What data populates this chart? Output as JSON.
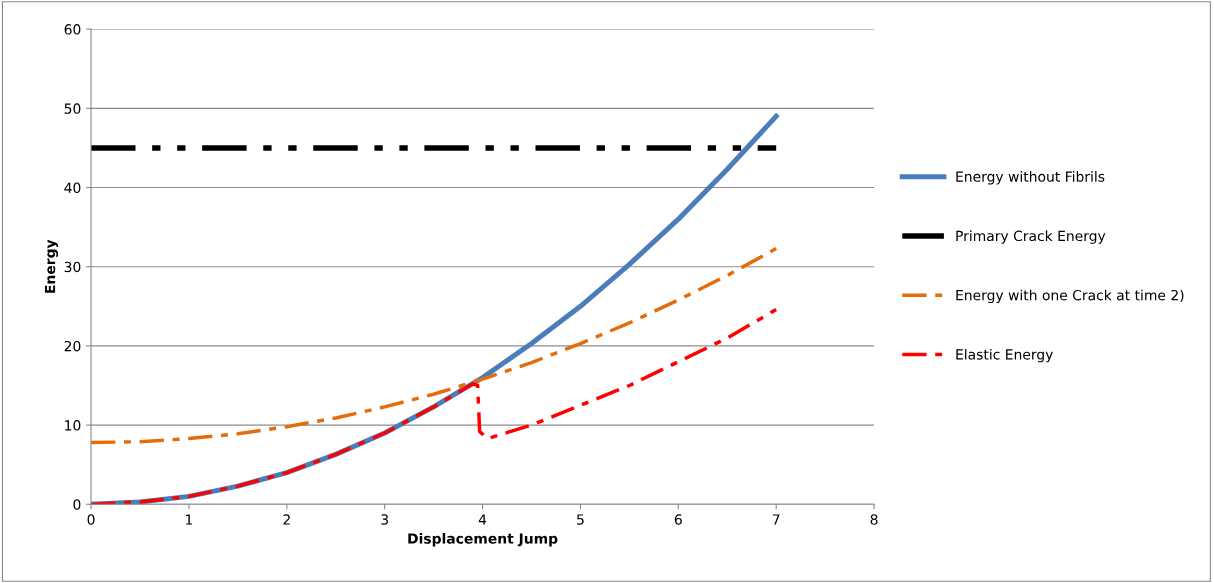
{
  "chart_data": {
    "type": "line",
    "xlabel": "Displacement Jump",
    "ylabel": "Energy",
    "xlim": [
      0,
      8
    ],
    "xticks": [
      0,
      1,
      2,
      3,
      4,
      5,
      6,
      7,
      8
    ],
    "ylim": [
      0,
      60
    ],
    "yticks": [
      0,
      10,
      20,
      30,
      40,
      50,
      60
    ],
    "grid": "y",
    "legend": "right",
    "marker": "none",
    "series": [
      {
        "name": "Energy without Fibrils",
        "color": "#4a7ebb",
        "line_style": "solid",
        "x": [
          0,
          0.5,
          1,
          1.5,
          2,
          2.5,
          3,
          3.5,
          4,
          4.5,
          5,
          5.5,
          6,
          6.5,
          7
        ],
        "values": [
          0,
          0.3,
          1,
          2.3,
          4,
          6.3,
          9,
          12.3,
          16,
          20.3,
          25,
          30.3,
          36,
          42.3,
          49
        ]
      },
      {
        "name": "Primary Crack Energy",
        "color": "#000000",
        "line_style": "dashdotdot",
        "x": [
          0,
          7
        ],
        "values": [
          45,
          45
        ]
      },
      {
        "name": "Energy with one Crack at time 2)",
        "color": "#e46c0a",
        "line_style": "dashdot",
        "x": [
          0,
          0.5,
          1,
          1.5,
          2,
          2.5,
          3,
          3.5,
          4,
          4.5,
          5,
          5.5,
          6,
          6.5,
          7
        ],
        "values": [
          7.8,
          7.9,
          8.3,
          8.9,
          9.8,
          10.9,
          12.3,
          13.9,
          15.8,
          17.9,
          20.3,
          22.9,
          25.8,
          28.9,
          32.3
        ]
      },
      {
        "name": "Elastic Energy",
        "color": "#ff0000",
        "line_style": "dashdot",
        "x": [
          0,
          0.5,
          1,
          1.5,
          2,
          2.5,
          3,
          3.5,
          3.9,
          3.95,
          3.97,
          4.05,
          4.5,
          5,
          5.5,
          6,
          6.5,
          7
        ],
        "values": [
          0,
          0.3,
          1,
          2.3,
          4,
          6.3,
          9,
          12.3,
          15.2,
          15,
          9.2,
          8.3,
          10,
          12.5,
          15,
          18,
          21,
          24.6
        ]
      }
    ]
  }
}
